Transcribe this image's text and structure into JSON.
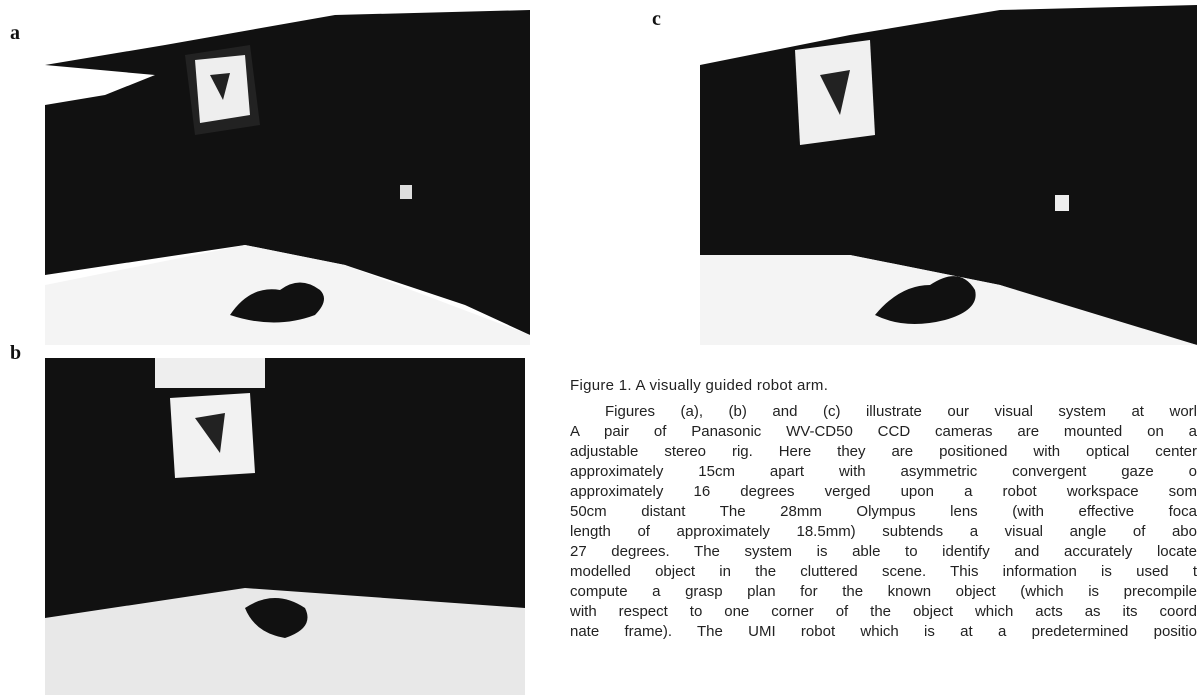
{
  "figure": {
    "panels": [
      {
        "label": "a"
      },
      {
        "label": "b"
      },
      {
        "label": "c"
      }
    ],
    "caption": "Figure 1. A visually guided robot arm.",
    "paragraph_lines": [
      "Figures (a), (b) and (c) illustrate our visual system at worl",
      "A pair of Panasonic WV-CD50 CCD cameras are mounted on a",
      "adjustable stereo rig. Here they are positioned with optical center",
      "approximately 15cm apart with asymmetric convergent gaze o",
      "approximately 16 degrees verged upon a robot workspace som",
      "50cm distant The 28mm Olympus lens (with effective foca",
      "length of approximately 18.5mm) subtends a visual angle of abo",
      "27 degrees. The system is able to identify and accurately locate",
      "modelled object in the cluttered scene. This information is used t",
      "compute a grasp plan for the known object (which is precompile",
      "with respect to one corner of the object which acts as its coord",
      "nate frame). The UMI robot which is at a predetermined positio"
    ]
  }
}
